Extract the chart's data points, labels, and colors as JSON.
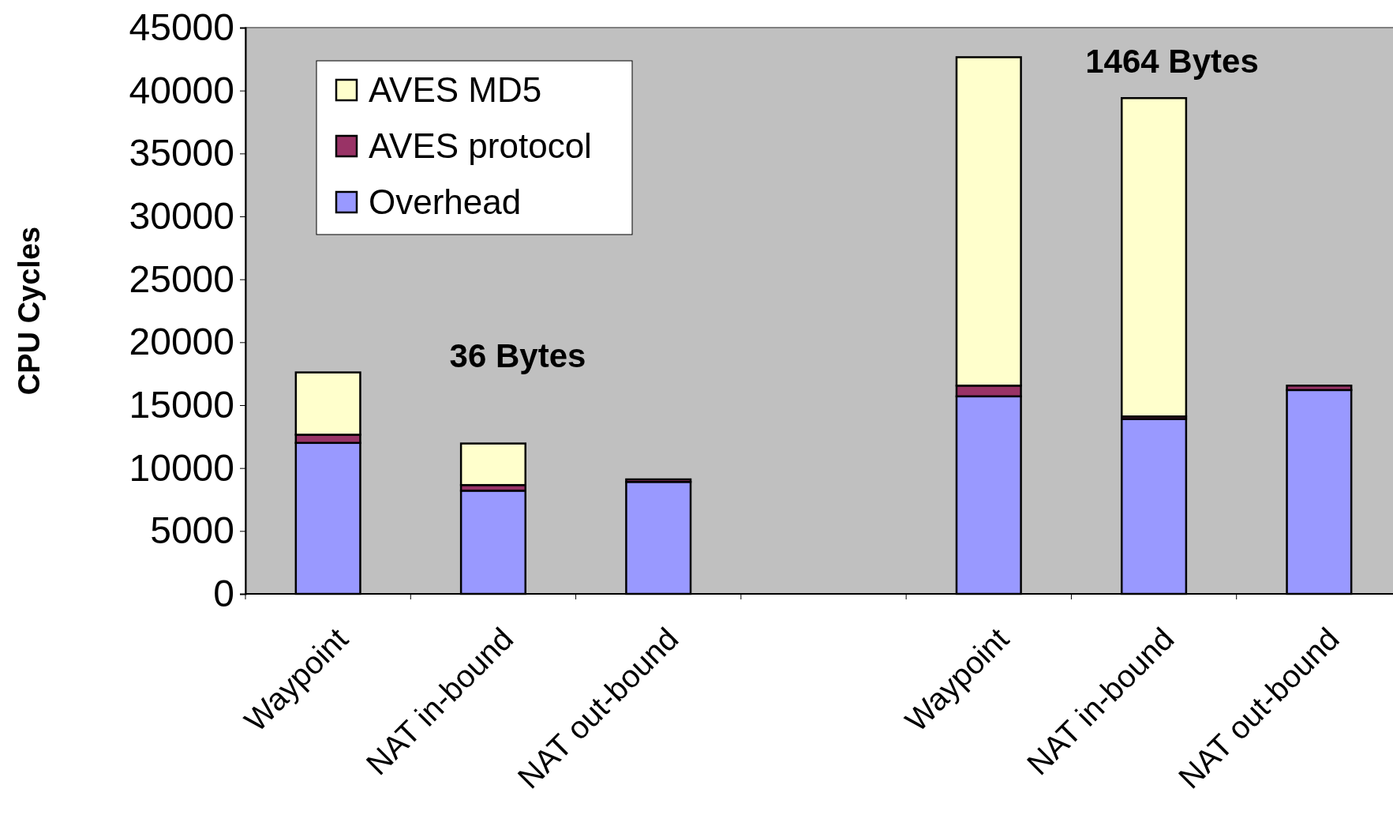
{
  "chart_data": {
    "type": "bar",
    "stacked": true,
    "ylabel": "CPU Cycles",
    "categories": [
      "Waypoint",
      "NAT in-bound",
      "NAT out-bound",
      null,
      "Waypoint",
      "NAT in-bound",
      "NAT out-bound"
    ],
    "series": [
      {
        "name": "Overhead",
        "color": "#9999ff",
        "values": [
          12000,
          8200,
          8900,
          null,
          15700,
          13900,
          16200
        ]
      },
      {
        "name": "AVES protocol",
        "color": "#993366",
        "values": [
          650,
          450,
          200,
          null,
          850,
          200,
          350
        ]
      },
      {
        "name": "AVES MD5",
        "color": "#ffffcc",
        "values": [
          4950,
          3300,
          0,
          null,
          26100,
          25300,
          0
        ]
      }
    ],
    "ylim": [
      0,
      45000
    ],
    "yticks": [
      0,
      5000,
      10000,
      15000,
      20000,
      25000,
      30000,
      35000,
      40000,
      45000
    ],
    "grid": false,
    "legend": "top left",
    "annotations": [
      "36 Bytes",
      "1464 Bytes"
    ]
  }
}
